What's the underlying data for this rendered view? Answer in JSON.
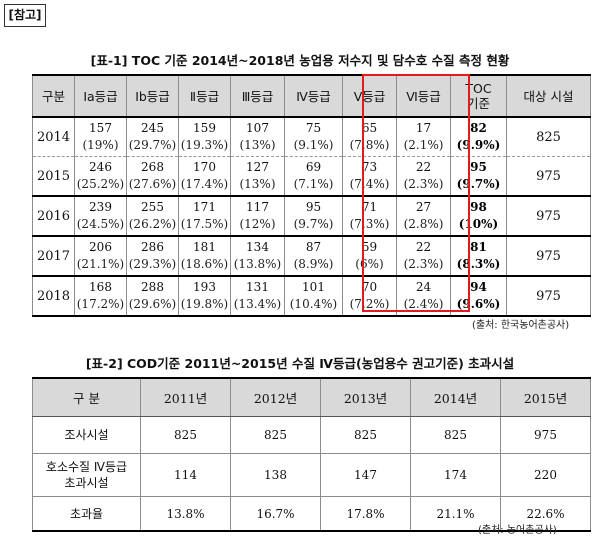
{
  "reference_tag": "[참고]",
  "table1": {
    "caption": "[표-1] TOC 기준 2014년~2018년 농업용 저수지 및 담수호 수질 측정 현황",
    "headers": [
      "구분",
      "Ia등급",
      "Ib등급",
      "Ⅱ등급",
      "Ⅲ등급",
      "Ⅳ등급",
      "Ⅴ등급",
      "Ⅵ등급",
      "TOC 기준",
      "대상 시설"
    ],
    "rows": [
      {
        "year": "2014",
        "cells": [
          [
            "157",
            "(19%)"
          ],
          [
            "245",
            "(29.7%)"
          ],
          [
            "159",
            "(19.3%)"
          ],
          [
            "107",
            "(13%)"
          ],
          [
            "75",
            "(9.1%)"
          ],
          [
            "65",
            "(7.8%)"
          ],
          [
            "17",
            "(2.1%)"
          ],
          [
            "82",
            "(9.9%)"
          ]
        ],
        "target": "825"
      },
      {
        "year": "2015",
        "cells": [
          [
            "246",
            "(25.2%)"
          ],
          [
            "268",
            "(27.6%)"
          ],
          [
            "170",
            "(17.4%)"
          ],
          [
            "127",
            "(13%)"
          ],
          [
            "69",
            "(7.1%)"
          ],
          [
            "73",
            "(7.4%)"
          ],
          [
            "22",
            "(2.3%)"
          ],
          [
            "95",
            "(9.7%)"
          ]
        ],
        "target": "975"
      },
      {
        "year": "2016",
        "cells": [
          [
            "239",
            "(24.5%)"
          ],
          [
            "255",
            "(26.2%)"
          ],
          [
            "171",
            "(17.5%)"
          ],
          [
            "117",
            "(12%)"
          ],
          [
            "95",
            "(9.7%)"
          ],
          [
            "71",
            "(7.3%)"
          ],
          [
            "27",
            "(2.8%)"
          ],
          [
            "98",
            "(10%)"
          ]
        ],
        "target": "975"
      },
      {
        "year": "2017",
        "cells": [
          [
            "206",
            "(21.1%)"
          ],
          [
            "286",
            "(29.3%)"
          ],
          [
            "181",
            "(18.6%)"
          ],
          [
            "134",
            "(13.8%)"
          ],
          [
            "87",
            "(8.9%)"
          ],
          [
            "59",
            "(6%)"
          ],
          [
            "22",
            "(2.3%)"
          ],
          [
            "81",
            "(8.3%)"
          ]
        ],
        "target": "975"
      },
      {
        "year": "2018",
        "cells": [
          [
            "168",
            "(17.2%)"
          ],
          [
            "288",
            "(29.6%)"
          ],
          [
            "193",
            "(19.8%)"
          ],
          [
            "131",
            "(13.4%)"
          ],
          [
            "101",
            "(10.4%)"
          ],
          [
            "70",
            "(7.2%)"
          ],
          [
            "24",
            "(2.4%)"
          ],
          [
            "94",
            "(9.6%)"
          ]
        ],
        "target": "975"
      }
    ],
    "source": "(출처: 한국농어촌공사)",
    "highlight_color": "#e51b1b"
  },
  "table2": {
    "caption": "[표-2] COD기준 2011년~2015년 수질 Ⅳ등급(농업용수 권고기준) 초과시설",
    "headers": [
      "구 분",
      "2011년",
      "2012년",
      "2013년",
      "2014년",
      "2015년"
    ],
    "rows": [
      {
        "label": "조사시설",
        "values": [
          "825",
          "825",
          "825",
          "825",
          "975"
        ]
      },
      {
        "label": "호소수질 Ⅳ등급\n초과시설",
        "values": [
          "114",
          "138",
          "147",
          "174",
          "220"
        ]
      },
      {
        "label": "초과율",
        "values": [
          "13.8%",
          "16.7%",
          "17.8%",
          "21.1%",
          "22.6%"
        ]
      }
    ],
    "source": "(출처: 농어촌공사)"
  },
  "colors": {
    "header_bg": "#d9d9d9",
    "grid": "#8c8c8c"
  }
}
